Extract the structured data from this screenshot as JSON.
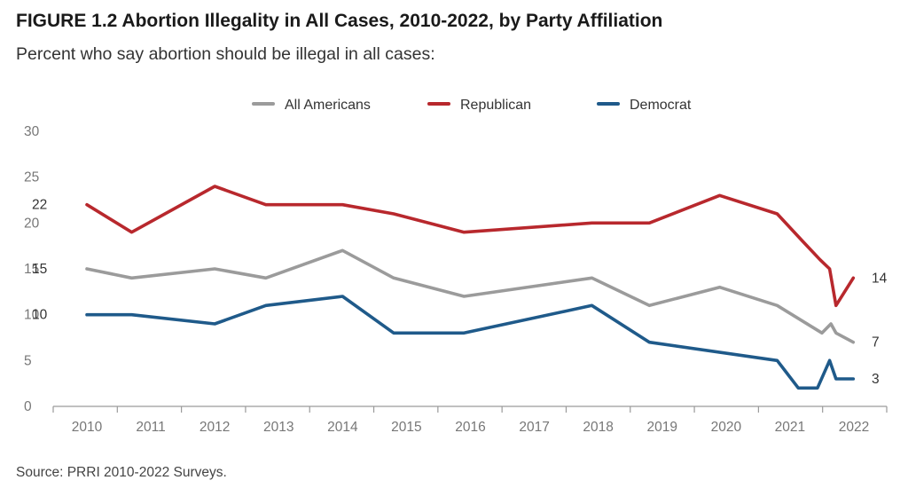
{
  "figure": {
    "title": "FIGURE 1.2  Abortion Illegality in All Cases, 2010-2022, by Party Affiliation",
    "subtitle": "Percent who say abortion should be illegal in all cases:",
    "source": "Source: PRRI 2010-2022 Surveys."
  },
  "chart_data": {
    "type": "line",
    "title": "FIGURE 1.2  Abortion Illegality in All Cases, 2010-2022, by Party Affiliation",
    "subtitle": "Percent who say abortion should be illegal in all cases:",
    "xlabel": "",
    "ylabel": "",
    "ylim": [
      0,
      30
    ],
    "yticks": [
      0,
      5,
      10,
      15,
      20,
      25,
      30
    ],
    "xlim": [
      2010,
      2022
    ],
    "xticks": [
      "2010",
      "2011",
      "2012",
      "2013",
      "2014",
      "2015",
      "2016",
      "2017",
      "2018",
      "2019",
      "2020",
      "2021",
      "2022"
    ],
    "grid": false,
    "legend_position": "top-center",
    "series": [
      {
        "name": "All Americans",
        "color": "#9b9b9b",
        "x": [
          2010,
          2010.7,
          2012,
          2012.8,
          2014,
          2014.8,
          2015.9,
          2017.9,
          2018.8,
          2019.9,
          2020.8,
          2021.5,
          2021.64,
          2021.72,
          2021.99
        ],
        "y": [
          15,
          14,
          15,
          14,
          17,
          14,
          12,
          14,
          11,
          13,
          11,
          8,
          9,
          8,
          7
        ]
      },
      {
        "name": "Republican",
        "color": "#b8282d",
        "x": [
          2010,
          2010.7,
          2012,
          2012.8,
          2014,
          2014.8,
          2015.9,
          2017.9,
          2018.8,
          2019.9,
          2020.8,
          2021.2,
          2021.47,
          2021.62,
          2021.72,
          2021.99
        ],
        "y": [
          22,
          19,
          24,
          22,
          22,
          21,
          19,
          20,
          20,
          23,
          21,
          18,
          16,
          15,
          11,
          14
        ]
      },
      {
        "name": "Democrat",
        "color": "#1f5a8a",
        "x": [
          2010,
          2010.7,
          2012,
          2012.8,
          2014,
          2014.8,
          2015.9,
          2017.9,
          2018.8,
          2020.8,
          2021.13,
          2021.43,
          2021.62,
          2021.72,
          2021.99
        ],
        "y": [
          10,
          10,
          9,
          11,
          12,
          8,
          8,
          11,
          7,
          5,
          2,
          2,
          5,
          3,
          3
        ]
      }
    ],
    "annotations": [
      {
        "series": "Republican",
        "point": "first",
        "text": "22"
      },
      {
        "series": "All Americans",
        "point": "first",
        "text": "15"
      },
      {
        "series": "Democrat",
        "point": "first",
        "text": "10"
      },
      {
        "series": "Republican",
        "point": "last",
        "text": "14"
      },
      {
        "series": "All Americans",
        "point": "last",
        "text": "7"
      },
      {
        "series": "Democrat",
        "point": "last",
        "text": "3"
      }
    ]
  }
}
